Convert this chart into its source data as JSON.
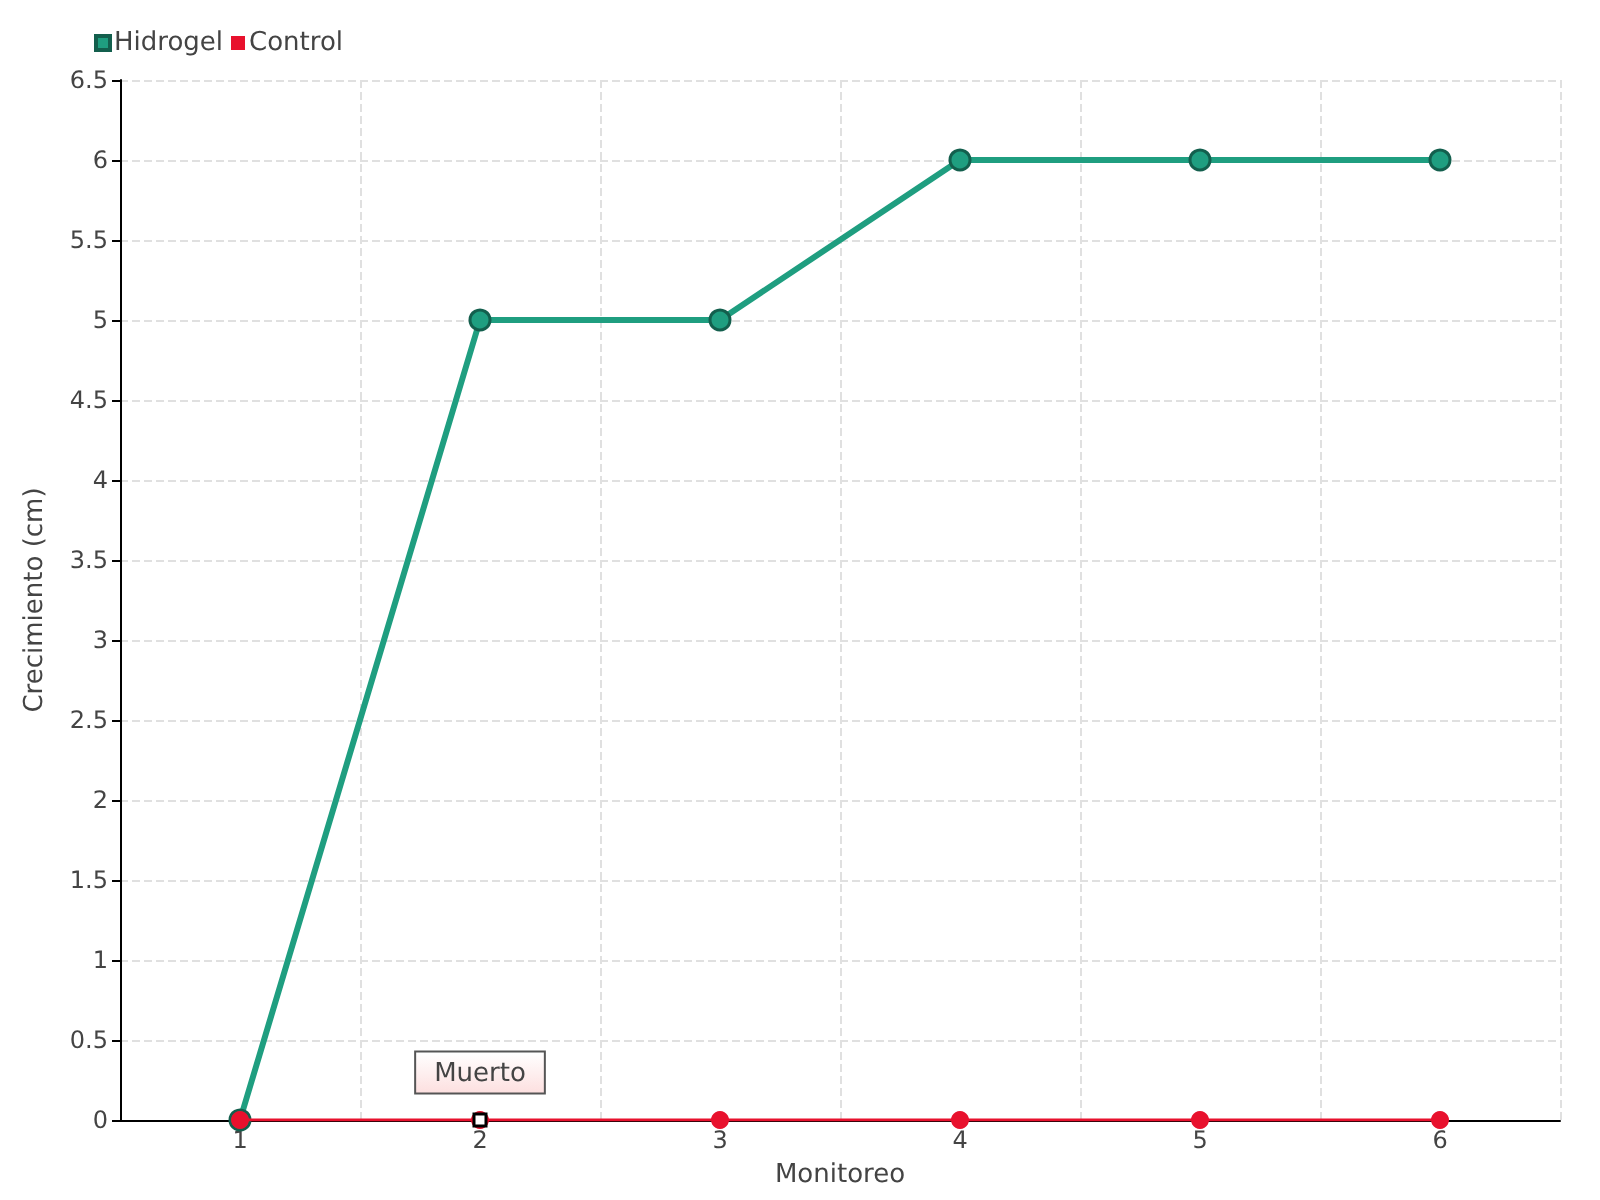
{
  "chart_data": {
    "type": "line",
    "xlabel": "Monitoreo",
    "ylabel": "Crecimiento (cm)",
    "categories": [
      "1",
      "2",
      "3",
      "4",
      "5",
      "6"
    ],
    "series": [
      {
        "name": "Hidrogel",
        "color": "#1f9e80",
        "values": [
          0,
          5,
          5,
          6,
          6,
          6
        ]
      },
      {
        "name": "Control",
        "color": "#e8112d",
        "values": [
          0,
          0,
          0,
          0,
          0,
          0
        ]
      }
    ],
    "ylim": [
      0,
      6.5
    ],
    "yticks": [
      0,
      0.5,
      1,
      1.5,
      2,
      2.5,
      3,
      3.5,
      4,
      4.5,
      5,
      5.5,
      6,
      6.5
    ],
    "grid": true,
    "legend": "top left",
    "marker": "circle",
    "line_style": "solid",
    "annotations": [
      {
        "text": "Muerto",
        "x": "2",
        "y": 0
      }
    ]
  }
}
